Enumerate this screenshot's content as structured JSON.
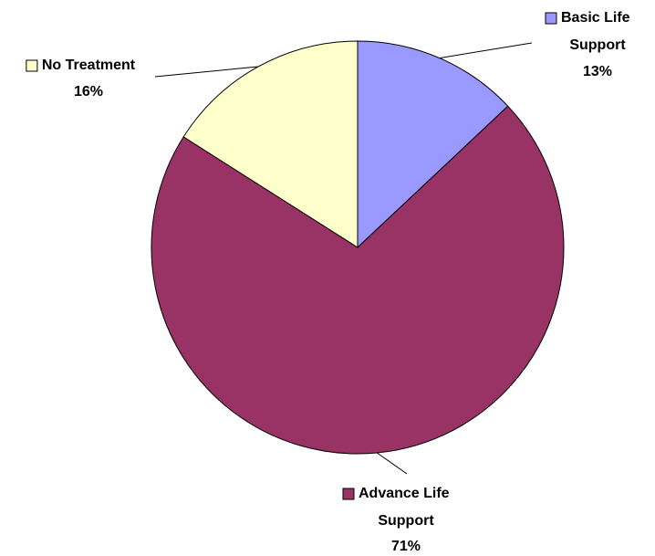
{
  "chart_data": {
    "type": "pie",
    "categories": [
      "Basic Life Support",
      "Advance Life Support",
      "No Treatment"
    ],
    "values": [
      13,
      71,
      16
    ],
    "value_labels": [
      "13%",
      "71%",
      "16%"
    ],
    "colors": [
      "#9999ff",
      "#993366",
      "#ffffcc"
    ]
  }
}
